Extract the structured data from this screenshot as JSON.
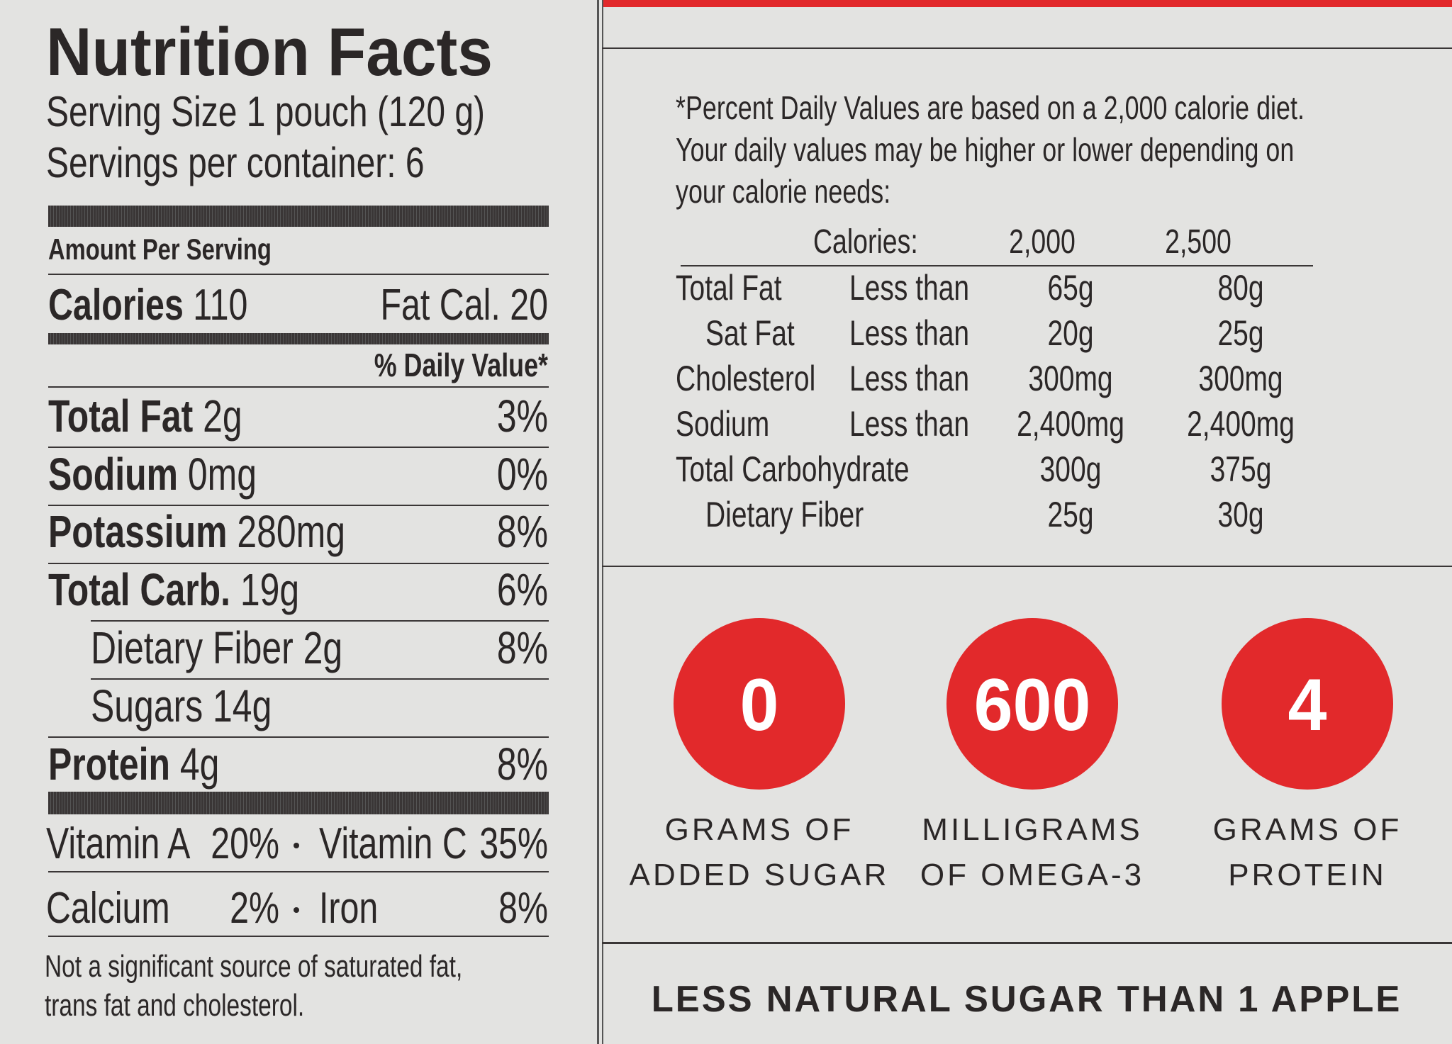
{
  "label": {
    "title": "Nutrition Facts",
    "serving_size": "Serving Size 1 pouch (120 g)",
    "servings_per_container": "Servings per container: 6",
    "amount_per_serving": "Amount Per Serving",
    "calories": {
      "name": "Calories",
      "amount": "110",
      "fat_calories": "Fat Cal. 20"
    },
    "daily_value_header": "% Daily Value*",
    "rows": [
      {
        "name": "Total Fat",
        "amount": "2g",
        "dv": "3%"
      },
      {
        "name": "Sodium",
        "amount": "0mg",
        "dv": "0%"
      },
      {
        "name": "Potassium",
        "amount": "280mg",
        "dv": "8%"
      },
      {
        "name": "Total Carb.",
        "amount": "19g",
        "dv": "6%"
      },
      {
        "sub": "Dietary Fiber 2g",
        "dv": "8%"
      },
      {
        "sub": "Sugars 14g"
      },
      {
        "name": "Protein",
        "amount": "4g",
        "dv": "8%"
      }
    ],
    "vitamins": [
      [
        {
          "name": "Vitamin A",
          "value": "20%"
        },
        {
          "name": "Vitamin C",
          "value": "35%"
        }
      ],
      [
        {
          "name": "Calcium",
          "value": "2%"
        },
        {
          "name": "Iron",
          "value": "8%"
        }
      ]
    ],
    "footnote": "Not a significant source of saturated fat, trans fat and cholesterol."
  },
  "daily_values": {
    "note": "*Percent Daily Values are based on a 2,000 calorie diet. Your daily values may be higher or lower depending on your calorie needs:",
    "header": {
      "label": "Calories:",
      "low": "2,000",
      "high": "2,500"
    },
    "rows": [
      {
        "nutrient": "Total Fat",
        "limit": "Less than",
        "low": "65g",
        "high": "80g"
      },
      {
        "nutrient": "Sat Fat",
        "limit": "Less than",
        "low": "20g",
        "high": "25g",
        "indent": true
      },
      {
        "nutrient": "Cholesterol",
        "limit": "Less than",
        "low": "300mg",
        "high": "300mg"
      },
      {
        "nutrient": "Sodium",
        "limit": "Less than",
        "low": "2,400mg",
        "high": "2,400mg"
      },
      {
        "nutrient": "Total Carbohydrate",
        "low": "300g",
        "high": "375g"
      },
      {
        "nutrient": "Dietary Fiber",
        "low": "25g",
        "high": "30g",
        "indent": true
      }
    ]
  },
  "badges": [
    {
      "value": "0",
      "label_lines": [
        "GRAMS OF",
        "ADDED SUGAR"
      ]
    },
    {
      "value": "600",
      "label_lines": [
        "MILLIGRAMS",
        "OF OMEGA-3"
      ]
    },
    {
      "value": "4",
      "label_lines": [
        "GRAMS OF",
        "PROTEIN"
      ]
    }
  ],
  "tagline": "LESS NATURAL SUGAR THAN 1 APPLE"
}
